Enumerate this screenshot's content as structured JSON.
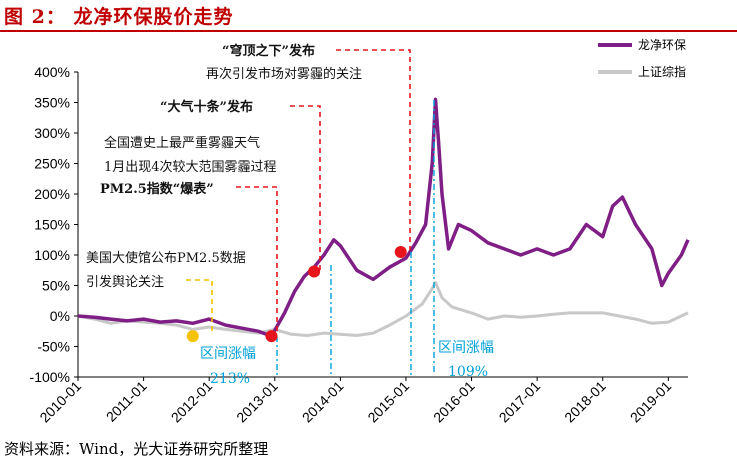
{
  "header": {
    "title": "图 2：  龙净环保股价走势"
  },
  "footer": {
    "source": "资料来源：Wind，光大证券研究所整理"
  },
  "chart_data": {
    "type": "line",
    "title": "龙净环保股价走势",
    "ylim": [
      -100,
      400
    ],
    "y_ticks": [
      "400%",
      "350%",
      "300%",
      "250%",
      "200%",
      "150%",
      "100%",
      "50%",
      "0%",
      "-50%",
      "-100%"
    ],
    "x_ticks": [
      "2010-01",
      "2011-01",
      "2012-01",
      "2013-01",
      "2014-01",
      "2015-01",
      "2016-01",
      "2017-01",
      "2018-01",
      "2019-01"
    ],
    "series": [
      {
        "name": "龙净环保",
        "color": "#7f1f86",
        "x": [
          2010.0,
          2010.25,
          2010.5,
          2010.75,
          2011.0,
          2011.25,
          2011.5,
          2011.75,
          2012.0,
          2012.25,
          2012.5,
          2012.75,
          2012.95,
          2013.15,
          2013.3,
          2013.45,
          2013.6,
          2013.75,
          2013.9,
          2014.0,
          2014.25,
          2014.5,
          2014.75,
          2015.0,
          2015.15,
          2015.3,
          2015.4,
          2015.45,
          2015.5,
          2015.55,
          2015.65,
          2015.8,
          2016.0,
          2016.25,
          2016.5,
          2016.75,
          2017.0,
          2017.25,
          2017.5,
          2017.75,
          2018.0,
          2018.15,
          2018.3,
          2018.5,
          2018.75,
          2018.9,
          2019.0,
          2019.2,
          2019.3
        ],
        "values": [
          0,
          -2,
          -5,
          -8,
          -5,
          -10,
          -8,
          -12,
          -5,
          -15,
          -20,
          -25,
          -33,
          5,
          40,
          65,
          80,
          100,
          125,
          115,
          75,
          60,
          80,
          95,
          120,
          150,
          250,
          355,
          280,
          200,
          110,
          150,
          140,
          120,
          110,
          100,
          110,
          100,
          110,
          150,
          130,
          180,
          195,
          150,
          110,
          50,
          70,
          100,
          125
        ]
      },
      {
        "name": "上证综指",
        "color": "#c8c8c8",
        "x": [
          2010.0,
          2010.25,
          2010.5,
          2010.75,
          2011.0,
          2011.25,
          2011.5,
          2011.75,
          2012.0,
          2012.25,
          2012.5,
          2012.75,
          2013.0,
          2013.25,
          2013.5,
          2013.75,
          2014.0,
          2014.25,
          2014.5,
          2014.75,
          2015.0,
          2015.25,
          2015.4,
          2015.45,
          2015.55,
          2015.7,
          2016.0,
          2016.25,
          2016.5,
          2016.75,
          2017.0,
          2017.25,
          2017.5,
          2017.75,
          2018.0,
          2018.25,
          2018.5,
          2018.75,
          2019.0,
          2019.3
        ],
        "values": [
          0,
          -5,
          -12,
          -8,
          -10,
          -12,
          -15,
          -22,
          -18,
          -22,
          -25,
          -28,
          -22,
          -30,
          -32,
          -28,
          -30,
          -32,
          -28,
          -15,
          0,
          20,
          45,
          55,
          30,
          15,
          5,
          -5,
          0,
          -2,
          0,
          3,
          5,
          5,
          5,
          0,
          -5,
          -12,
          -10,
          5
        ]
      }
    ],
    "markers": [
      {
        "name": "event-marker-embassy",
        "x": 2011.75,
        "y": -33,
        "color": "#f5c200"
      },
      {
        "name": "event-marker-pm25-2013",
        "x": 2012.95,
        "y": -33,
        "color": "#e8141c"
      },
      {
        "name": "event-marker-daqi",
        "x": 2013.6,
        "y": 73,
        "color": "#e8141c"
      },
      {
        "name": "event-marker-qiongding",
        "x": 2014.92,
        "y": 105,
        "color": "#e8141c"
      }
    ],
    "legend": {
      "position": "top-right",
      "entries": [
        "龙净环保",
        "上证综指"
      ]
    },
    "annotations": {
      "qiongding_title": "“穹顶之下”发布",
      "qiongding_sub": "再次引发市场对雾霾的关注",
      "daqi_title": "“大气十条”发布",
      "national_1": "全国遭史上最严重雾霾天气",
      "national_2": "1月出现4次较大范围雾霾过程",
      "pm25_burst": "PM2.5指数“爆表”",
      "embassy_1": "美国大使馆公布PM2.5数据",
      "embassy_2": "引发舆论关注",
      "range_label_1": "区间涨幅",
      "range_value_1": "213%",
      "range_label_2": "区间涨幅",
      "range_value_2": "109%"
    }
  }
}
